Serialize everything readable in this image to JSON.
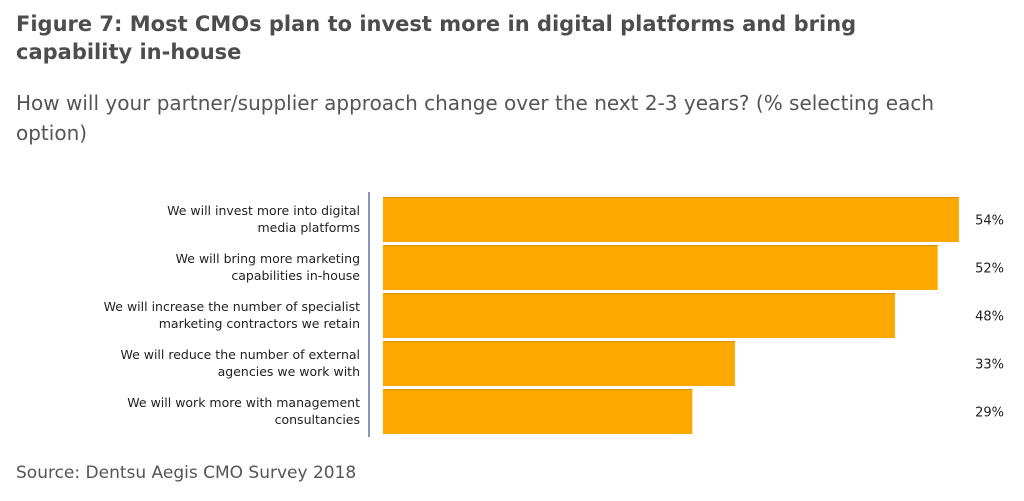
{
  "title": "Figure 7: Most CMOs plan to invest more in digital platforms and bring capability in-house",
  "subtitle": "How will your partner/supplier approach change over the next 2-3 years? (% selecting each option)",
  "source": "Source: Dentsu Aegis CMO Survey 2018",
  "colors": {
    "bar": "#FFA800",
    "axis": "#6b6fa8",
    "separator": "#d89000"
  },
  "chart_data": {
    "type": "bar",
    "orientation": "horizontal",
    "title": "Figure 7: Most CMOs plan to invest more in digital platforms and bring capability in-house",
    "xlabel": "",
    "ylabel": "",
    "xlim": [
      0,
      54
    ],
    "grid": false,
    "categories": [
      [
        "We will invest more into digital",
        "media platforms"
      ],
      [
        "We will bring more marketing",
        "capabilities in-house"
      ],
      [
        "We will increase the number of specialist",
        "marketing contractors we retain"
      ],
      [
        "We will reduce the number of external",
        "agencies we work with"
      ],
      [
        "We will work more with management",
        "consultancies"
      ]
    ],
    "values": [
      54,
      52,
      48,
      33,
      29
    ],
    "value_labels": [
      "54%",
      "52%",
      "48%",
      "33%",
      "29%"
    ]
  }
}
